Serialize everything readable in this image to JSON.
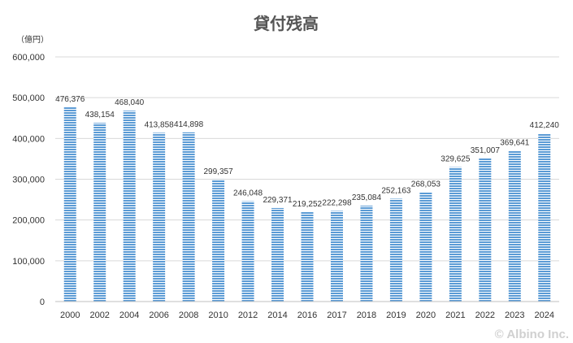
{
  "chart_data": {
    "type": "bar",
    "title": "貸付残高",
    "unit_label": "（億円）",
    "categories": [
      "2000",
      "2002",
      "2004",
      "2006",
      "2008",
      "2010",
      "2012",
      "2014",
      "2016",
      "2017",
      "2018",
      "2019",
      "2020",
      "2021",
      "2022",
      "2023",
      "2024"
    ],
    "values": [
      476376,
      438154,
      468040,
      413858,
      414898,
      299357,
      246048,
      229371,
      219252,
      222298,
      235084,
      252163,
      268053,
      329625,
      351007,
      369641,
      412240
    ],
    "value_labels": [
      "476,376",
      "438,154",
      "468,040",
      "413,858",
      "414,898",
      "299,357",
      "246,048",
      "229,371",
      "219,252",
      "222,298",
      "235,084",
      "252,163",
      "268,053",
      "329,625",
      "351,007",
      "369,641",
      "412,240"
    ],
    "yticks": [
      0,
      100000,
      200000,
      300000,
      400000,
      500000,
      600000
    ],
    "ytick_labels": [
      "0",
      "100,000",
      "200,000",
      "300,000",
      "400,000",
      "500,000",
      "600,000"
    ],
    "ylim": [
      0,
      600000
    ],
    "grid": true,
    "legend": "none",
    "colors": {
      "bar_fill": "#9dc3e6",
      "bar_stripe": "#5b9bd5",
      "grid": "#d9d9d9",
      "axis": "#bfbfbf"
    }
  },
  "copyright": "© Albino Inc."
}
